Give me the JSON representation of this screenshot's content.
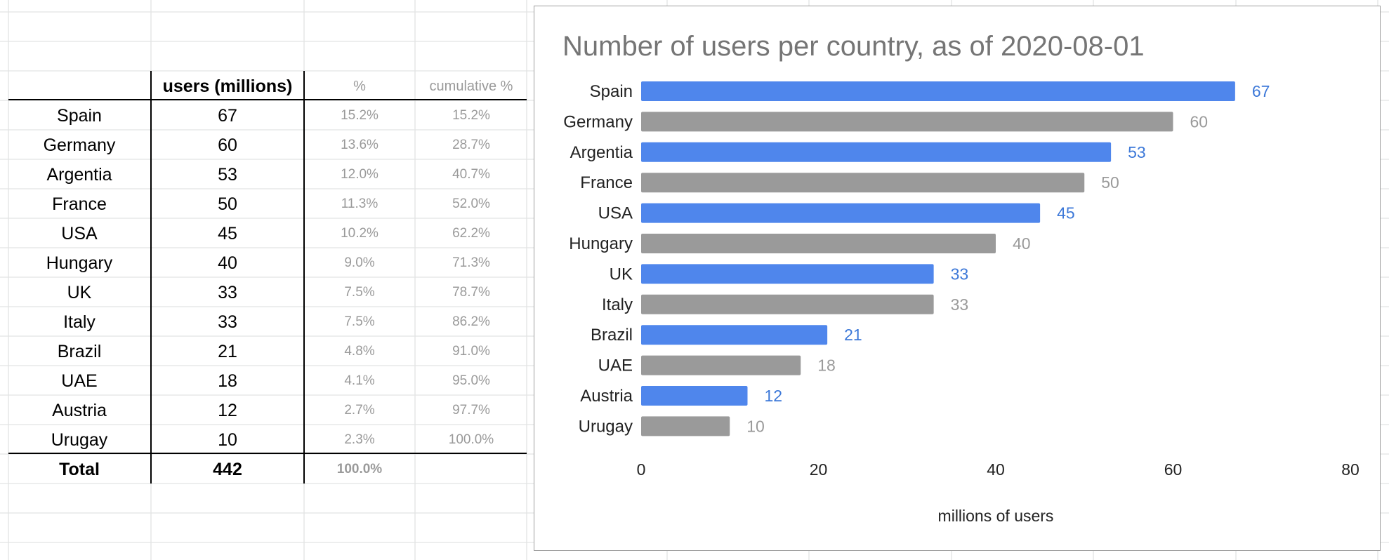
{
  "table": {
    "headers": [
      "",
      "users (millions)",
      "%",
      "cumulative %"
    ],
    "rows": [
      [
        "Spain",
        "67",
        "15.2%",
        "15.2%"
      ],
      [
        "Germany",
        "60",
        "13.6%",
        "28.7%"
      ],
      [
        "Argentia",
        "53",
        "12.0%",
        "40.7%"
      ],
      [
        "France",
        "50",
        "11.3%",
        "52.0%"
      ],
      [
        "USA",
        "45",
        "10.2%",
        "62.2%"
      ],
      [
        "Hungary",
        "40",
        "9.0%",
        "71.3%"
      ],
      [
        "UK",
        "33",
        "7.5%",
        "78.7%"
      ],
      [
        "Italy",
        "33",
        "7.5%",
        "86.2%"
      ],
      [
        "Brazil",
        "21",
        "4.8%",
        "91.0%"
      ],
      [
        "UAE",
        "18",
        "4.1%",
        "95.0%"
      ],
      [
        "Austria",
        "12",
        "2.7%",
        "97.7%"
      ],
      [
        "Urugay",
        "10",
        "2.3%",
        "100.0%"
      ]
    ],
    "total": [
      "Total",
      "442",
      "100.0%",
      ""
    ]
  },
  "chart_data": {
    "type": "bar",
    "orientation": "horizontal",
    "title": "Number of users per country, as of 2020-08-01",
    "xlabel": "millions of users",
    "ylabel": "",
    "categories": [
      "Spain",
      "Germany",
      "Argentia",
      "France",
      "USA",
      "Hungary",
      "UK",
      "Italy",
      "Brazil",
      "UAE",
      "Austria",
      "Urugay"
    ],
    "values": [
      67,
      60,
      53,
      50,
      45,
      40,
      33,
      33,
      21,
      18,
      12,
      10
    ],
    "xlim": [
      0,
      80
    ],
    "xticks": [
      0,
      20,
      40,
      60,
      80
    ],
    "grid": false,
    "legend": "none",
    "bar_colors": [
      "#4f86ec",
      "#9a9a9a"
    ],
    "label_colors": [
      "#3c78d8",
      "#9a9a9a"
    ]
  }
}
